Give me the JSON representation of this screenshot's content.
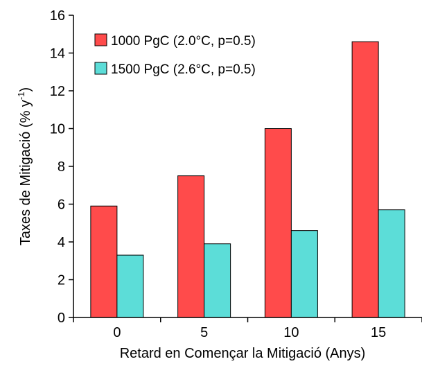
{
  "chart_data": {
    "type": "bar",
    "categories": [
      "0",
      "5",
      "10",
      "15"
    ],
    "series": [
      {
        "name": "1000 PgC (2.0°C, p=0.5)",
        "values": [
          5.9,
          7.5,
          10.0,
          14.6
        ],
        "color": "#ff4b4b"
      },
      {
        "name": "1500 PgC (2.6°C, p=0.5)",
        "values": [
          3.3,
          3.9,
          4.6,
          5.7
        ],
        "color": "#5cddd8"
      }
    ],
    "xlabel": "Retard en Començar la Mitigació (Anys)",
    "ylabel": "Taxes de Mitigació (% y⁻¹)",
    "ylabel_main": "Taxes de Mitigació (% y",
    "ylabel_sup": "-1",
    "ylabel_tail": ")",
    "ylim": [
      0,
      16
    ],
    "yticks": [
      "0",
      "2",
      "4",
      "6",
      "8",
      "10",
      "12",
      "14",
      "16"
    ],
    "grid": false,
    "legend": "top-left"
  }
}
